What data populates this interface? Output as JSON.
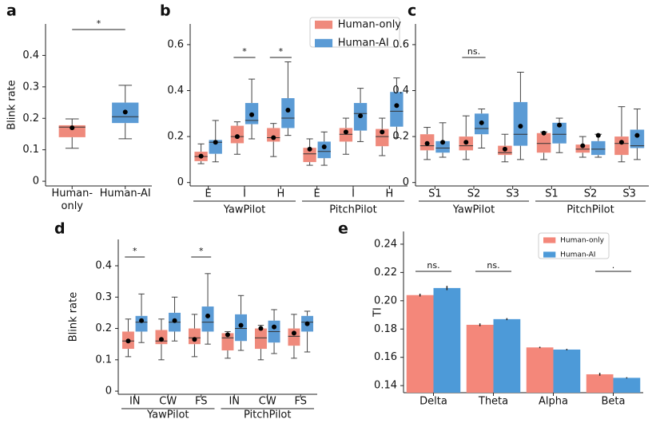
{
  "chart_data": [
    {
      "type": "box",
      "panel": "a",
      "ylabel": "Blink rate",
      "categories": [
        "Human-only",
        "Human-AI"
      ],
      "colors": [
        "#ef8a7c",
        "#5b9bd5"
      ],
      "boxes": [
        {
          "q1": 0.14,
          "median": 0.172,
          "q3": 0.178,
          "whislo": 0.105,
          "whishi": 0.198,
          "mean": 0.17
        },
        {
          "q1": 0.185,
          "median": 0.205,
          "q3": 0.25,
          "whislo": 0.135,
          "whishi": 0.305,
          "mean": 0.22
        }
      ],
      "ylim": [
        -0.015,
        0.5
      ],
      "yticks": [
        0,
        0.1,
        0.2,
        0.3,
        0.4
      ],
      "annotations": [
        {
          "text": "*"
        }
      ]
    },
    {
      "type": "box",
      "panel": "b",
      "legend": "upper right",
      "categories": [
        "E",
        "I",
        "H",
        "E",
        "I",
        "H"
      ],
      "groups": [
        "YawPilot",
        "PitchPilot"
      ],
      "series": [
        {
          "name": "Human-only",
          "color": "#ef8a7c",
          "boxes": [
            {
              "q1": 0.093,
              "median": 0.113,
              "q3": 0.134,
              "whislo": 0.082,
              "whishi": 0.168,
              "mean": 0.115
            },
            {
              "q1": 0.171,
              "median": 0.2,
              "q3": 0.247,
              "whislo": 0.123,
              "whishi": 0.264,
              "mean": 0.2
            },
            {
              "q1": 0.178,
              "median": 0.195,
              "q3": 0.237,
              "whislo": 0.113,
              "whishi": 0.257,
              "mean": 0.195
            },
            {
              "q1": 0.089,
              "median": 0.125,
              "q3": 0.151,
              "whislo": 0.075,
              "whishi": 0.19,
              "mean": 0.145
            },
            {
              "q1": 0.178,
              "median": 0.21,
              "q3": 0.237,
              "whislo": 0.123,
              "whishi": 0.28,
              "mean": 0.22
            },
            {
              "q1": 0.158,
              "median": 0.2,
              "q3": 0.233,
              "whislo": 0.117,
              "whishi": 0.28,
              "mean": 0.22
            }
          ]
        },
        {
          "name": "Human-AI",
          "color": "#5b9bd5",
          "boxes": [
            {
              "q1": 0.125,
              "median": 0.175,
              "q3": 0.185,
              "whislo": 0.09,
              "whishi": 0.27,
              "mean": 0.175
            },
            {
              "q1": 0.254,
              "median": 0.27,
              "q3": 0.346,
              "whislo": 0.19,
              "whishi": 0.45,
              "mean": 0.295
            },
            {
              "q1": 0.237,
              "median": 0.28,
              "q3": 0.367,
              "whislo": 0.205,
              "whishi": 0.525,
              "mean": 0.315
            },
            {
              "q1": 0.106,
              "median": 0.135,
              "q3": 0.178,
              "whislo": 0.075,
              "whishi": 0.22,
              "mean": 0.155
            },
            {
              "q1": 0.226,
              "median": 0.3,
              "q3": 0.346,
              "whislo": 0.178,
              "whishi": 0.41,
              "mean": 0.29
            },
            {
              "q1": 0.243,
              "median": 0.31,
              "q3": 0.394,
              "whislo": 0.195,
              "whishi": 0.455,
              "mean": 0.335
            }
          ]
        }
      ],
      "ylim": [
        -0.015,
        0.69
      ],
      "yticks": [
        0,
        0.2,
        0.4,
        0.6
      ],
      "annotations": [
        {
          "text": "*",
          "category": 1
        },
        {
          "text": "*",
          "category": 2
        }
      ]
    },
    {
      "type": "box",
      "panel": "c",
      "categories": [
        "S1",
        "S2",
        "S3",
        "S1",
        "S2",
        "S3"
      ],
      "groups": [
        "YawPilot",
        "PitchPilot"
      ],
      "series": [
        {
          "name": "Human-only",
          "color": "#ef8a7c",
          "boxes": [
            {
              "q1": 0.14,
              "median": 0.16,
              "q3": 0.21,
              "whislo": 0.1,
              "whishi": 0.24,
              "mean": 0.17
            },
            {
              "q1": 0.14,
              "median": 0.16,
              "q3": 0.2,
              "whislo": 0.1,
              "whishi": 0.29,
              "mean": 0.175
            },
            {
              "q1": 0.12,
              "median": 0.13,
              "q3": 0.16,
              "whislo": 0.09,
              "whishi": 0.21,
              "mean": 0.145
            },
            {
              "q1": 0.13,
              "median": 0.17,
              "q3": 0.215,
              "whislo": 0.1,
              "whishi": 0.22,
              "mean": 0.215
            },
            {
              "q1": 0.13,
              "median": 0.145,
              "q3": 0.165,
              "whislo": 0.11,
              "whishi": 0.2,
              "mean": 0.16
            },
            {
              "q1": 0.12,
              "median": 0.17,
              "q3": 0.2,
              "whislo": 0.09,
              "whishi": 0.33,
              "mean": 0.175
            }
          ]
        },
        {
          "name": "Human-AI",
          "color": "#5b9bd5",
          "boxes": [
            {
              "q1": 0.13,
              "median": 0.15,
              "q3": 0.18,
              "whislo": 0.11,
              "whishi": 0.26,
              "mean": 0.175
            },
            {
              "q1": 0.21,
              "median": 0.235,
              "q3": 0.3,
              "whislo": 0.15,
              "whishi": 0.32,
              "mean": 0.26
            },
            {
              "q1": 0.16,
              "median": 0.21,
              "q3": 0.35,
              "whislo": 0.1,
              "whishi": 0.48,
              "mean": 0.245
            },
            {
              "q1": 0.17,
              "median": 0.21,
              "q3": 0.26,
              "whislo": 0.13,
              "whishi": 0.28,
              "mean": 0.25
            },
            {
              "q1": 0.12,
              "median": 0.145,
              "q3": 0.18,
              "whislo": 0.11,
              "whishi": 0.21,
              "mean": 0.205
            },
            {
              "q1": 0.15,
              "median": 0.16,
              "q3": 0.23,
              "whislo": 0.1,
              "whishi": 0.32,
              "mean": 0.205
            }
          ]
        }
      ],
      "ylim": [
        -0.015,
        0.69
      ],
      "yticks": [
        0,
        0.2,
        0.4,
        0.6
      ],
      "annotations": [
        {
          "text": "ns.",
          "category": 1
        }
      ]
    },
    {
      "type": "box",
      "panel": "d",
      "ylabel": "Blink rate",
      "categories": [
        "IN",
        "CW",
        "FS",
        "IN",
        "CW",
        "FS"
      ],
      "groups": [
        "YawPilot",
        "PitchPilot"
      ],
      "series": [
        {
          "name": "Human-only",
          "color": "#ef8a7c",
          "boxes": [
            {
              "q1": 0.135,
              "median": 0.16,
              "q3": 0.19,
              "whislo": 0.11,
              "whishi": 0.23,
              "mean": 0.16
            },
            {
              "q1": 0.15,
              "median": 0.16,
              "q3": 0.195,
              "whislo": 0.1,
              "whishi": 0.23,
              "mean": 0.165
            },
            {
              "q1": 0.15,
              "median": 0.17,
              "q3": 0.2,
              "whislo": 0.11,
              "whishi": 0.245,
              "mean": 0.165
            },
            {
              "q1": 0.13,
              "median": 0.17,
              "q3": 0.185,
              "whislo": 0.105,
              "whishi": 0.19,
              "mean": 0.18
            },
            {
              "q1": 0.135,
              "median": 0.17,
              "q3": 0.2,
              "whislo": 0.1,
              "whishi": 0.21,
              "mean": 0.2
            },
            {
              "q1": 0.145,
              "median": 0.175,
              "q3": 0.2,
              "whislo": 0.105,
              "whishi": 0.245,
              "mean": 0.185
            }
          ]
        },
        {
          "name": "Human-AI",
          "color": "#5b9bd5",
          "boxes": [
            {
              "q1": 0.19,
              "median": 0.22,
              "q3": 0.24,
              "whislo": 0.155,
              "whishi": 0.31,
              "mean": 0.225
            },
            {
              "q1": 0.19,
              "median": 0.22,
              "q3": 0.25,
              "whislo": 0.16,
              "whishi": 0.3,
              "mean": 0.225
            },
            {
              "q1": 0.19,
              "median": 0.22,
              "q3": 0.27,
              "whislo": 0.15,
              "whishi": 0.375,
              "mean": 0.24
            },
            {
              "q1": 0.16,
              "median": 0.2,
              "q3": 0.245,
              "whislo": 0.13,
              "whishi": 0.305,
              "mean": 0.21
            },
            {
              "q1": 0.155,
              "median": 0.19,
              "q3": 0.225,
              "whislo": 0.12,
              "whishi": 0.26,
              "mean": 0.205
            },
            {
              "q1": 0.19,
              "median": 0.22,
              "q3": 0.24,
              "whislo": 0.125,
              "whishi": 0.255,
              "mean": 0.215
            }
          ]
        }
      ],
      "ylim": [
        -0.01,
        0.484
      ],
      "yticks": [
        0,
        0.1,
        0.2,
        0.3,
        0.4
      ],
      "annotations": [
        {
          "text": "*",
          "category": 0
        },
        {
          "text": "*",
          "category": 2
        }
      ]
    },
    {
      "type": "bar",
      "panel": "e",
      "ylabel": "TI",
      "legend": "upper right",
      "categories": [
        "Delta",
        "Theta",
        "Alpha",
        "Beta"
      ],
      "series": [
        {
          "name": "Human-only",
          "color": "#f4877a",
          "values": [
            0.204,
            0.183,
            0.167,
            0.148
          ],
          "errors": [
            0.001,
            0.001,
            0.0005,
            0.001
          ]
        },
        {
          "name": "Human-AI",
          "color": "#4d9ad8",
          "values": [
            0.209,
            0.187,
            0.1655,
            0.1455
          ],
          "errors": [
            0.0015,
            0.0007,
            0.0005,
            0.0004
          ]
        }
      ],
      "ylim": [
        0.135,
        0.249
      ],
      "yticks": [
        0.14,
        0.16,
        0.18,
        {
          "value": 0.2,
          "label": "0.20"
        },
        0.22,
        0.24
      ],
      "annotations": [
        {
          "text": "ns.",
          "category": 0
        },
        {
          "text": "ns.",
          "category": 1
        },
        {
          "text": ".",
          "category": 3
        }
      ]
    }
  ]
}
